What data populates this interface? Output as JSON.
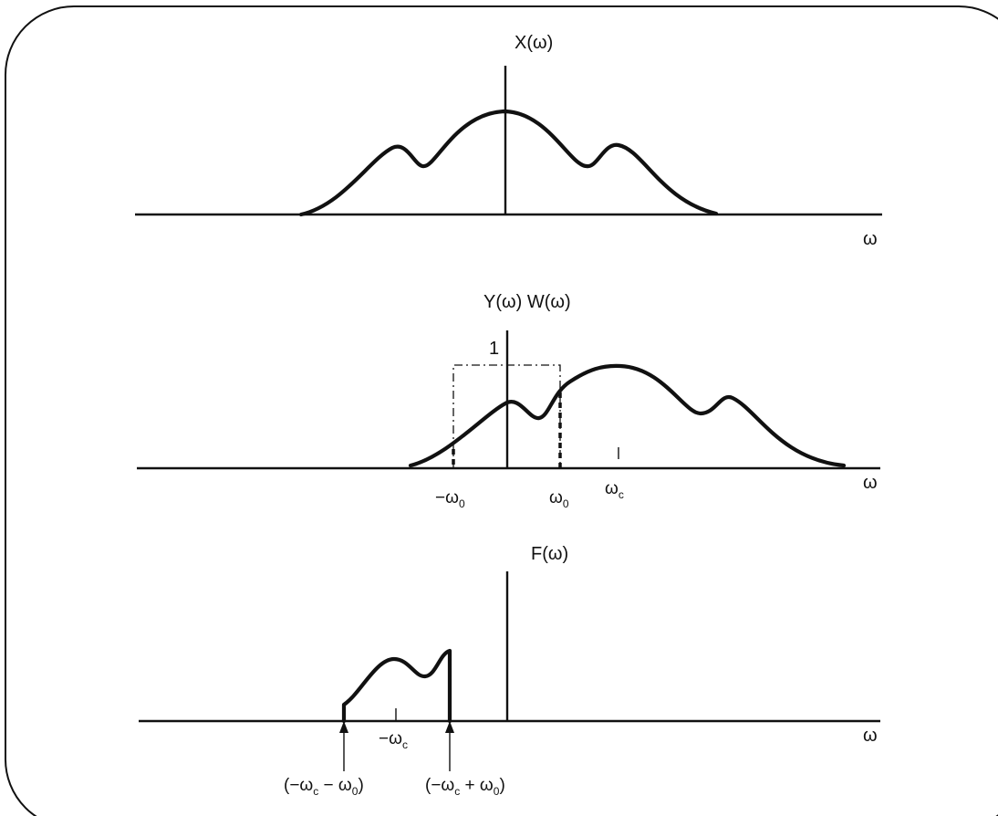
{
  "panel_top": {
    "title": "X(ω)",
    "axis_label": "ω"
  },
  "panel_middle": {
    "title": "Y(ω) W(ω)",
    "window_height_label": "1",
    "axis_label": "ω",
    "tick_labels": {
      "minus_omega": "−ω",
      "minus_omega_sub": "0",
      "omega": "ω",
      "omega_sub": "0",
      "omega_c": "ω",
      "omega_c_sub": "c"
    }
  },
  "panel_bottom": {
    "title": "F(ω)",
    "axis_label": "ω",
    "center_label": "−ω",
    "center_label_sub": "c",
    "left_edge_label": {
      "open": "(−ω",
      "sub1": "c",
      "mid": " − ω",
      "sub2": "0",
      "close": ")"
    },
    "right_edge_label": {
      "open": "(−ω",
      "sub1": "c",
      "mid": " + ω",
      "sub2": "0",
      "close": ")"
    }
  }
}
